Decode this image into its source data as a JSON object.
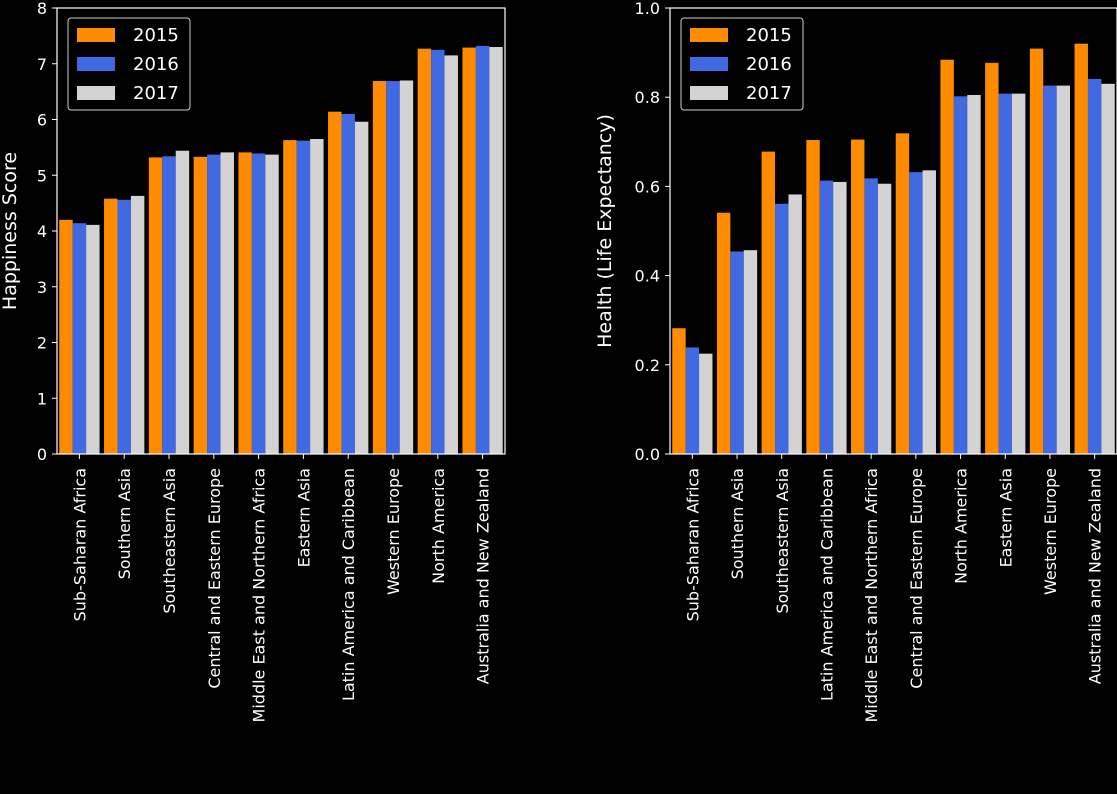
{
  "colors": {
    "background": "#000000",
    "axes": "#ffffff",
    "series": [
      "#ff8c00",
      "#4169e1",
      "#d3d3d3"
    ]
  },
  "chart_data": [
    {
      "type": "bar",
      "ylabel": "Happiness Score",
      "xlabel": "",
      "ylim": [
        0,
        8
      ],
      "yticks": [
        "0",
        "1",
        "2",
        "3",
        "4",
        "5",
        "6",
        "7",
        "8"
      ],
      "legend_position": "top-left",
      "grid": false,
      "categories": [
        "Sub-Saharan Africa",
        "Southern Asia",
        "Southeastern Asia",
        "Central and Eastern Europe",
        "Middle East and Northern Africa",
        "Eastern Asia",
        "Latin America and Caribbean",
        "Western Europe",
        "North America",
        "Australia and New Zealand"
      ],
      "series": [
        {
          "name": "2015",
          "values": [
            4.2,
            4.58,
            5.32,
            5.33,
            5.41,
            5.63,
            6.14,
            6.69,
            7.27,
            7.29
          ]
        },
        {
          "name": "2016",
          "values": [
            4.14,
            4.56,
            5.34,
            5.37,
            5.39,
            5.62,
            6.1,
            6.69,
            7.25,
            7.32
          ]
        },
        {
          "name": "2017",
          "values": [
            4.11,
            4.63,
            5.44,
            5.41,
            5.37,
            5.65,
            5.96,
            6.7,
            7.15,
            7.3
          ]
        }
      ]
    },
    {
      "type": "bar",
      "ylabel": "Health (Life Expectancy)",
      "xlabel": "",
      "ylim": [
        0,
        1.0
      ],
      "yticks": [
        "0.0",
        "0.2",
        "0.4",
        "0.6",
        "0.8",
        "1.0"
      ],
      "legend_position": "top-left",
      "grid": false,
      "categories": [
        "Sub-Saharan Africa",
        "Southern Asia",
        "Southeastern Asia",
        "Latin America and Caribbean",
        "Middle East and Northern Africa",
        "Central and Eastern Europe",
        "North America",
        "Eastern Asia",
        "Western Europe",
        "Australia and New Zealand"
      ],
      "series": [
        {
          "name": "2015",
          "values": [
            0.282,
            0.541,
            0.678,
            0.704,
            0.705,
            0.719,
            0.884,
            0.877,
            0.909,
            0.92
          ]
        },
        {
          "name": "2016",
          "values": [
            0.239,
            0.454,
            0.561,
            0.613,
            0.618,
            0.632,
            0.802,
            0.808,
            0.826,
            0.841
          ]
        },
        {
          "name": "2017",
          "values": [
            0.225,
            0.457,
            0.582,
            0.61,
            0.606,
            0.636,
            0.805,
            0.808,
            0.826,
            0.83
          ]
        }
      ]
    }
  ]
}
